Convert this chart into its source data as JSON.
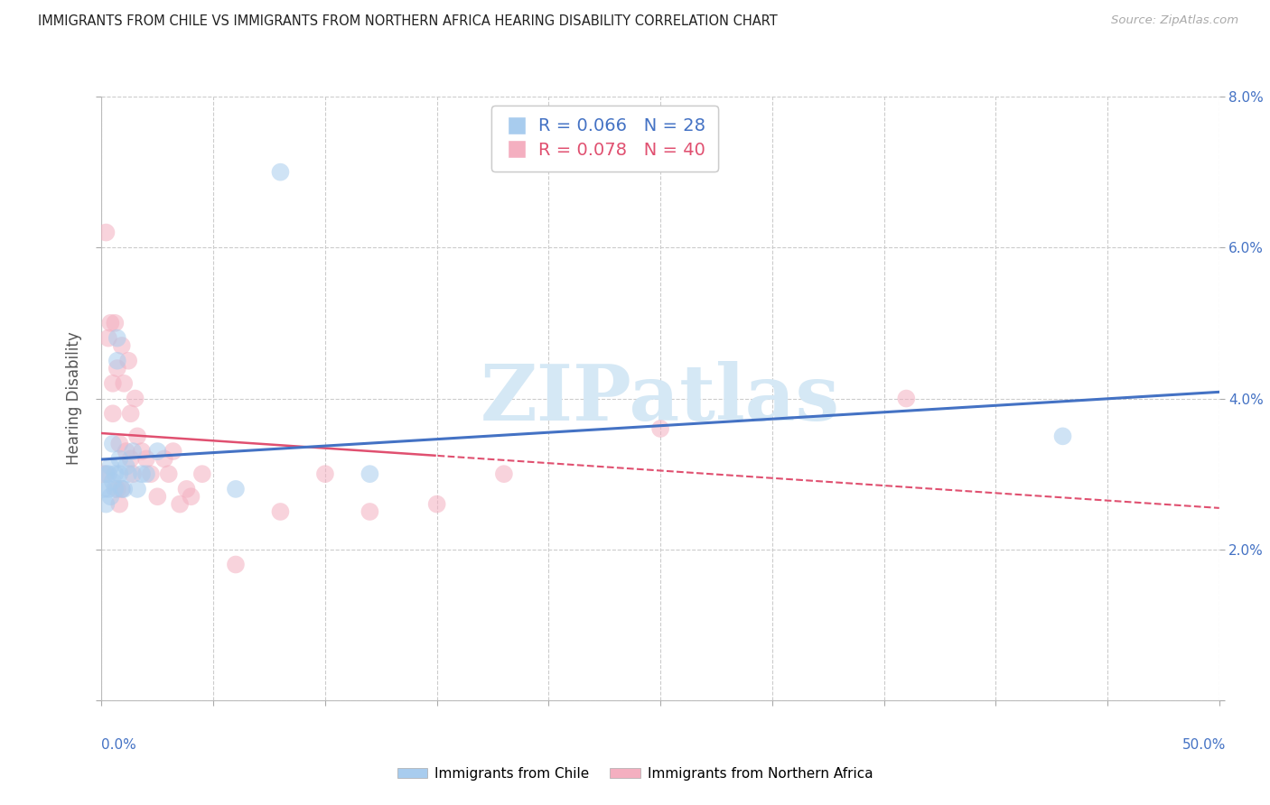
{
  "title": "IMMIGRANTS FROM CHILE VS IMMIGRANTS FROM NORTHERN AFRICA HEARING DISABILITY CORRELATION CHART",
  "source": "Source: ZipAtlas.com",
  "ylabel": "Hearing Disability",
  "ylim": [
    0.0,
    0.08
  ],
  "xlim": [
    0.0,
    0.5
  ],
  "chile_R": "0.066",
  "chile_N": "28",
  "africa_R": "0.078",
  "africa_N": "40",
  "chile_color": "#a8ccee",
  "africa_color": "#f4afc0",
  "chile_line_color": "#4472c4",
  "africa_line_color": "#e05070",
  "watermark_color": "#d5e8f5",
  "background_color": "#ffffff",
  "grid_color": "#cccccc",
  "chile_x": [
    0.001,
    0.002,
    0.002,
    0.003,
    0.003,
    0.004,
    0.004,
    0.005,
    0.005,
    0.006,
    0.006,
    0.007,
    0.007,
    0.008,
    0.008,
    0.009,
    0.01,
    0.011,
    0.012,
    0.014,
    0.016,
    0.018,
    0.02,
    0.025,
    0.06,
    0.08,
    0.12,
    0.43
  ],
  "chile_y": [
    0.028,
    0.026,
    0.03,
    0.03,
    0.028,
    0.031,
    0.027,
    0.034,
    0.029,
    0.03,
    0.028,
    0.045,
    0.048,
    0.03,
    0.032,
    0.028,
    0.028,
    0.031,
    0.03,
    0.033,
    0.028,
    0.03,
    0.03,
    0.033,
    0.028,
    0.07,
    0.03,
    0.035
  ],
  "africa_x": [
    0.001,
    0.002,
    0.003,
    0.004,
    0.005,
    0.005,
    0.006,
    0.007,
    0.007,
    0.008,
    0.008,
    0.009,
    0.009,
    0.01,
    0.011,
    0.012,
    0.013,
    0.013,
    0.014,
    0.015,
    0.016,
    0.018,
    0.02,
    0.022,
    0.025,
    0.028,
    0.03,
    0.032,
    0.035,
    0.038,
    0.04,
    0.045,
    0.06,
    0.08,
    0.1,
    0.12,
    0.15,
    0.18,
    0.25,
    0.36
  ],
  "africa_y": [
    0.03,
    0.062,
    0.048,
    0.05,
    0.038,
    0.042,
    0.05,
    0.044,
    0.028,
    0.034,
    0.026,
    0.047,
    0.028,
    0.042,
    0.033,
    0.045,
    0.038,
    0.032,
    0.03,
    0.04,
    0.035,
    0.033,
    0.032,
    0.03,
    0.027,
    0.032,
    0.03,
    0.033,
    0.026,
    0.028,
    0.027,
    0.03,
    0.018,
    0.025,
    0.03,
    0.025,
    0.026,
    0.03,
    0.036,
    0.04
  ]
}
